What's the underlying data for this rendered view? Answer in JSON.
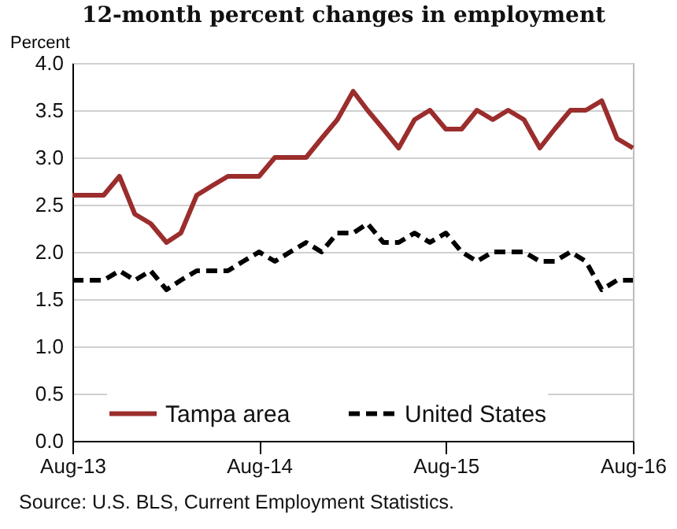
{
  "chart_data": {
    "type": "line",
    "title": "12-month percent changes in employment",
    "ylabel": "Percent",
    "x": [
      "2013-08",
      "2013-09",
      "2013-10",
      "2013-11",
      "2013-12",
      "2014-01",
      "2014-02",
      "2014-03",
      "2014-04",
      "2014-05",
      "2014-06",
      "2014-07",
      "2014-08",
      "2014-09",
      "2014-10",
      "2014-11",
      "2014-12",
      "2015-01",
      "2015-02",
      "2015-03",
      "2015-04",
      "2015-05",
      "2015-06",
      "2015-07",
      "2015-08",
      "2015-09",
      "2015-10",
      "2015-11",
      "2015-12",
      "2016-01",
      "2016-02",
      "2016-03",
      "2016-04",
      "2016-05",
      "2016-06",
      "2016-07",
      "2016-08"
    ],
    "series": [
      {
        "name": "Tampa area",
        "color": "#9b2d2d",
        "line_style": "solid",
        "values": [
          2.6,
          2.6,
          2.6,
          2.8,
          2.4,
          2.3,
          2.1,
          2.2,
          2.6,
          2.7,
          2.8,
          2.8,
          2.8,
          3.0,
          3.0,
          3.0,
          3.2,
          3.4,
          3.7,
          3.5,
          3.3,
          3.1,
          3.4,
          3.5,
          3.3,
          3.3,
          3.5,
          3.4,
          3.5,
          3.4,
          3.1,
          3.3,
          3.5,
          3.5,
          3.6,
          3.2,
          3.1
        ]
      },
      {
        "name": "United States",
        "color": "#000000",
        "line_style": "dashed",
        "values": [
          1.7,
          1.7,
          1.7,
          1.8,
          1.7,
          1.8,
          1.6,
          1.7,
          1.8,
          1.8,
          1.8,
          1.9,
          2.0,
          1.9,
          2.0,
          2.1,
          2.0,
          2.2,
          2.2,
          2.3,
          2.1,
          2.1,
          2.2,
          2.1,
          2.2,
          2.0,
          1.9,
          2.0,
          2.0,
          2.0,
          1.9,
          1.9,
          2.0,
          1.9,
          1.6,
          1.7,
          1.7
        ]
      }
    ],
    "xlim": [
      "2013-08",
      "2016-08"
    ],
    "xticks": [
      {
        "value": "2013-08",
        "label": "Aug-13"
      },
      {
        "value": "2014-08",
        "label": "Aug-14"
      },
      {
        "value": "2015-08",
        "label": "Aug-15"
      },
      {
        "value": "2016-08",
        "label": "Aug-16"
      }
    ],
    "ylim": [
      0,
      4
    ],
    "yticks": [
      {
        "value": 0,
        "label": "0.0"
      },
      {
        "value": 0.5,
        "label": "0.5"
      },
      {
        "value": 1,
        "label": "1.0"
      },
      {
        "value": 1.5,
        "label": "1.5"
      },
      {
        "value": 2,
        "label": "2.0"
      },
      {
        "value": 2.5,
        "label": "2.5"
      },
      {
        "value": 3,
        "label": "3.0"
      },
      {
        "value": 3.5,
        "label": "3.5"
      },
      {
        "value": 4,
        "label": "4.0"
      }
    ],
    "grid": "y",
    "legend": "bottom",
    "annotations": [
      "Source: U.S. BLS, Current Employment Statistics."
    ]
  }
}
